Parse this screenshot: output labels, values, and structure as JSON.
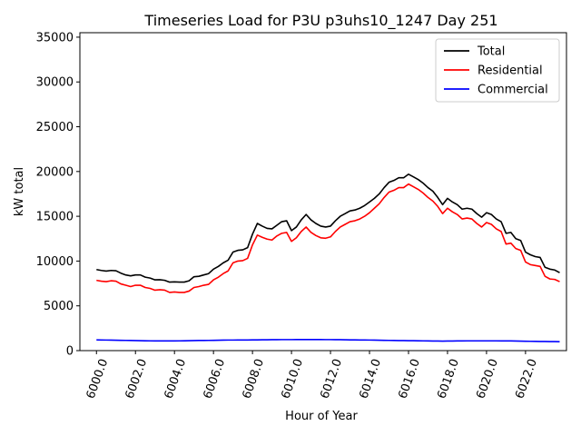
{
  "chart_data": {
    "type": "line",
    "title": "Timeseries Load for P3U p3uhs10_1247  Day 251",
    "xlabel": "Hour of Year",
    "ylabel": "kW total",
    "xlim": [
      5999.15,
      6024.1
    ],
    "ylim": [
      0,
      35500
    ],
    "x_ticks": [
      6000,
      6002,
      6004,
      6006,
      6008,
      6010,
      6012,
      6014,
      6016,
      6018,
      6020,
      6022
    ],
    "x_tick_labels": [
      "6000.0",
      "6002.0",
      "6004.0",
      "6006.0",
      "6008.0",
      "6010.0",
      "6012.0",
      "6014.0",
      "6016.0",
      "6018.0",
      "6020.0",
      "6022.0"
    ],
    "y_ticks": [
      0,
      5000,
      10000,
      15000,
      20000,
      25000,
      30000,
      35000
    ],
    "y_tick_labels": [
      "0",
      "5000",
      "10000",
      "15000",
      "20000",
      "25000",
      "30000",
      "35000"
    ],
    "legend_position": "top-right",
    "grid": false,
    "x": [
      6000.0,
      6000.25,
      6000.5,
      6000.75,
      6001.0,
      6001.25,
      6001.5,
      6001.75,
      6002.0,
      6002.25,
      6002.5,
      6002.75,
      6003.0,
      6003.25,
      6003.5,
      6003.75,
      6004.0,
      6004.25,
      6004.5,
      6004.75,
      6005.0,
      6005.25,
      6005.5,
      6005.75,
      6006.0,
      6006.25,
      6006.5,
      6006.75,
      6007.0,
      6007.25,
      6007.5,
      6007.75,
      6008.0,
      6008.25,
      6008.5,
      6008.75,
      6009.0,
      6009.25,
      6009.5,
      6009.75,
      6010.0,
      6010.25,
      6010.5,
      6010.75,
      6011.0,
      6011.25,
      6011.5,
      6011.75,
      6012.0,
      6012.25,
      6012.5,
      6012.75,
      6013.0,
      6013.25,
      6013.5,
      6013.75,
      6014.0,
      6014.25,
      6014.5,
      6014.75,
      6015.0,
      6015.25,
      6015.5,
      6015.75,
      6016.0,
      6016.25,
      6016.5,
      6016.75,
      6017.0,
      6017.25,
      6017.5,
      6017.75,
      6018.0,
      6018.25,
      6018.5,
      6018.75,
      6019.0,
      6019.25,
      6019.5,
      6019.75,
      6020.0,
      6020.25,
      6020.5,
      6020.75,
      6021.0,
      6021.25,
      6021.5,
      6021.75,
      6022.0,
      6022.25,
      6022.5,
      6022.75,
      6023.0,
      6023.25,
      6023.5,
      6023.75
    ],
    "series": [
      {
        "name": "Total",
        "color": "#000000",
        "values": [
          9050,
          8950,
          8880,
          8950,
          8920,
          8650,
          8450,
          8350,
          8450,
          8450,
          8200,
          8100,
          7900,
          7920,
          7850,
          7650,
          7680,
          7650,
          7650,
          7800,
          8250,
          8300,
          8450,
          8600,
          9100,
          9400,
          9800,
          10100,
          11000,
          11200,
          11250,
          11500,
          13000,
          14200,
          13900,
          13650,
          13600,
          14000,
          14400,
          14500,
          13400,
          13800,
          14600,
          15200,
          14600,
          14200,
          13900,
          13800,
          13900,
          14500,
          15000,
          15300,
          15600,
          15700,
          15900,
          16200,
          16600,
          17000,
          17500,
          18200,
          18800,
          19000,
          19300,
          19300,
          19700,
          19400,
          19100,
          18700,
          18200,
          17800,
          17100,
          16300,
          17000,
          16600,
          16300,
          15800,
          15900,
          15800,
          15300,
          14900,
          15400,
          15200,
          14700,
          14400,
          13100,
          13200,
          12500,
          12300,
          11000,
          10700,
          10500,
          10400,
          9300,
          9100,
          9000,
          8700
        ]
      },
      {
        "name": "Residential",
        "color": "#ff0000",
        "values": [
          7850,
          7750,
          7700,
          7800,
          7750,
          7450,
          7300,
          7150,
          7300,
          7300,
          7050,
          6950,
          6750,
          6800,
          6750,
          6500,
          6550,
          6500,
          6500,
          6650,
          7050,
          7150,
          7300,
          7400,
          7900,
          8200,
          8600,
          8900,
          9800,
          10000,
          10050,
          10300,
          11800,
          12900,
          12650,
          12450,
          12350,
          12800,
          13100,
          13200,
          12200,
          12600,
          13300,
          13800,
          13200,
          12850,
          12600,
          12550,
          12700,
          13300,
          13800,
          14100,
          14400,
          14500,
          14700,
          15000,
          15400,
          15900,
          16400,
          17100,
          17700,
          17900,
          18200,
          18200,
          18600,
          18300,
          18000,
          17600,
          17100,
          16700,
          16100,
          15300,
          15900,
          15500,
          15200,
          14700,
          14800,
          14700,
          14200,
          13800,
          14300,
          14100,
          13600,
          13300,
          11900,
          12000,
          11400,
          11200,
          9900,
          9600,
          9500,
          9400,
          8300,
          8000,
          7950,
          7700
        ]
      },
      {
        "name": "Commercial",
        "color": "#0000ff",
        "values": [
          1200,
          1190,
          1180,
          1170,
          1160,
          1150,
          1140,
          1130,
          1120,
          1110,
          1100,
          1090,
          1080,
          1080,
          1080,
          1080,
          1080,
          1090,
          1100,
          1110,
          1120,
          1130,
          1130,
          1140,
          1150,
          1160,
          1170,
          1180,
          1180,
          1190,
          1190,
          1190,
          1200,
          1200,
          1210,
          1210,
          1220,
          1220,
          1230,
          1230,
          1230,
          1240,
          1240,
          1240,
          1240,
          1240,
          1240,
          1230,
          1230,
          1220,
          1220,
          1210,
          1200,
          1200,
          1190,
          1190,
          1180,
          1170,
          1160,
          1150,
          1140,
          1130,
          1120,
          1120,
          1110,
          1110,
          1100,
          1090,
          1080,
          1070,
          1070,
          1060,
          1070,
          1070,
          1080,
          1080,
          1090,
          1090,
          1090,
          1090,
          1090,
          1090,
          1090,
          1080,
          1080,
          1080,
          1070,
          1060,
          1050,
          1040,
          1030,
          1020,
          1020,
          1010,
          1010,
          1000
        ]
      }
    ]
  }
}
